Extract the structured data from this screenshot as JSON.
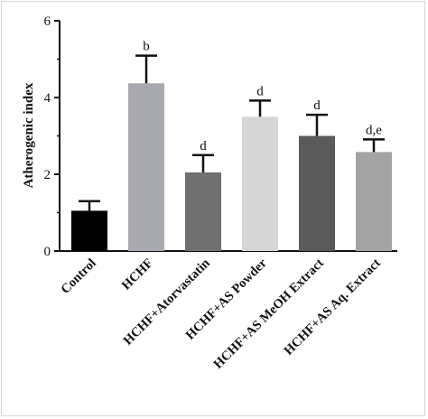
{
  "chart_data": {
    "type": "bar",
    "ylabel": "Atherogenic index",
    "ylim": [
      0,
      6
    ],
    "yticks": [
      0,
      2,
      4,
      6
    ],
    "categories": [
      "Control",
      "HCHF",
      "HCHF+Atorvastatin",
      "HCHF+AS Powder",
      "HCHF+AS MeOH Extract",
      "HCHF+AS Aq. Extract"
    ],
    "values": [
      1.05,
      4.37,
      2.05,
      3.5,
      3.0,
      2.58
    ],
    "errors": [
      0.25,
      0.72,
      0.45,
      0.42,
      0.55,
      0.33
    ],
    "significance": [
      "",
      "b",
      "d",
      "d",
      "d",
      "d,e"
    ],
    "colors": [
      "#000000",
      "#a9a9b0",
      "#707070",
      "#d6d6d6",
      "#5a5a5a",
      "#a4a4a4"
    ]
  }
}
